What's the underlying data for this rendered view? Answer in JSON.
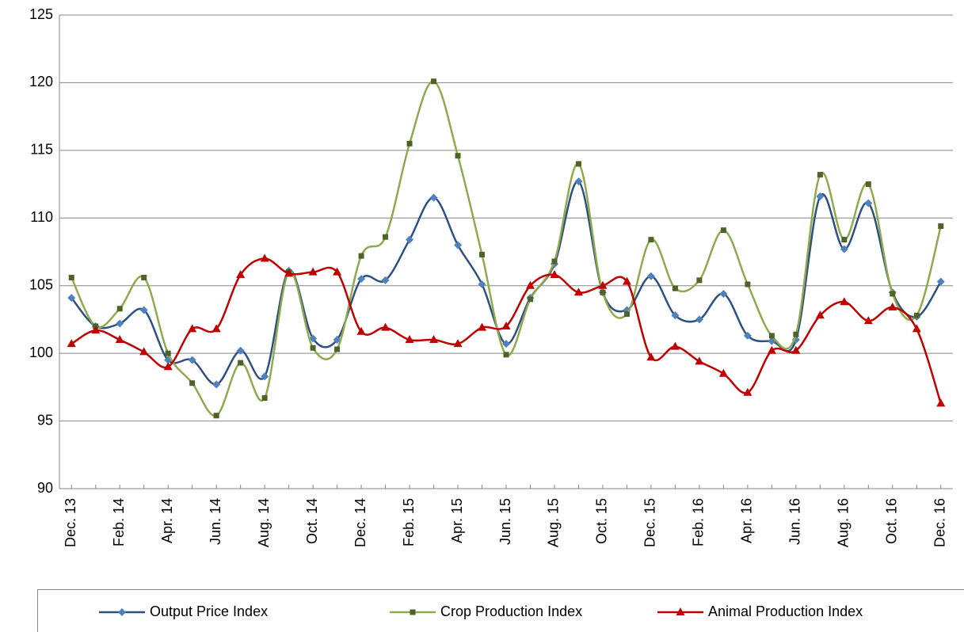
{
  "chart_data": {
    "type": "line",
    "categories": [
      "Dec. 13",
      null,
      "Feb. 14",
      null,
      "Apr. 14",
      null,
      "Jun. 14",
      null,
      "Aug. 14",
      null,
      "Oct. 14",
      null,
      "Dec. 14",
      null,
      "Feb. 15",
      null,
      "Apr. 15",
      null,
      "Jun. 15",
      null,
      "Aug. 15",
      null,
      "Oct. 15",
      null,
      "Dec. 15",
      null,
      "Feb. 16",
      null,
      "Apr. 16",
      null,
      "Jun. 16",
      null,
      "Aug. 16",
      null,
      "Oct. 16",
      null,
      "Dec. 16"
    ],
    "series": [
      {
        "name": "Output Price Index",
        "color": "#2f4f80",
        "values": [
          104.1,
          102.0,
          102.2,
          103.2,
          99.5,
          99.5,
          97.7,
          100.2,
          98.3,
          106.1,
          101.1,
          101.0,
          105.5,
          105.4,
          108.4,
          111.5,
          108.0,
          105.1,
          100.7,
          104.1,
          106.6,
          112.7,
          104.5,
          103.2,
          105.7,
          102.8,
          102.5,
          104.4,
          101.3,
          100.9,
          101.0,
          111.6,
          107.7,
          111.1,
          104.5,
          102.7,
          105.3
        ]
      },
      {
        "name": "Crop Production Index",
        "color": "#8faa4c",
        "values": [
          105.6,
          102.0,
          103.3,
          105.6,
          100.0,
          97.8,
          95.4,
          99.3,
          96.7,
          106.0,
          100.4,
          100.3,
          107.2,
          108.6,
          115.5,
          120.1,
          114.6,
          107.3,
          99.9,
          104.0,
          106.8,
          114.0,
          104.5,
          102.9,
          108.4,
          104.8,
          105.4,
          109.1,
          105.1,
          101.3,
          101.4,
          113.2,
          108.4,
          112.5,
          104.4,
          102.8,
          109.4
        ]
      },
      {
        "name": "Animal Production Index",
        "color": "#c00000",
        "values": [
          100.7,
          101.7,
          101.0,
          100.1,
          99.0,
          101.8,
          101.8,
          105.8,
          107.0,
          105.9,
          106.0,
          106.0,
          101.6,
          101.9,
          101.0,
          101.0,
          100.7,
          101.9,
          102.0,
          105.0,
          105.8,
          104.5,
          105.0,
          105.3,
          99.7,
          100.5,
          99.4,
          98.5,
          97.1,
          100.2,
          100.2,
          102.8,
          103.8,
          102.4,
          103.4,
          101.8,
          96.3
        ]
      }
    ],
    "ylim": [
      90,
      125
    ],
    "yticks": [
      90,
      95,
      100,
      105,
      110,
      115,
      120,
      125
    ],
    "grid": true,
    "legend": "bottom"
  }
}
